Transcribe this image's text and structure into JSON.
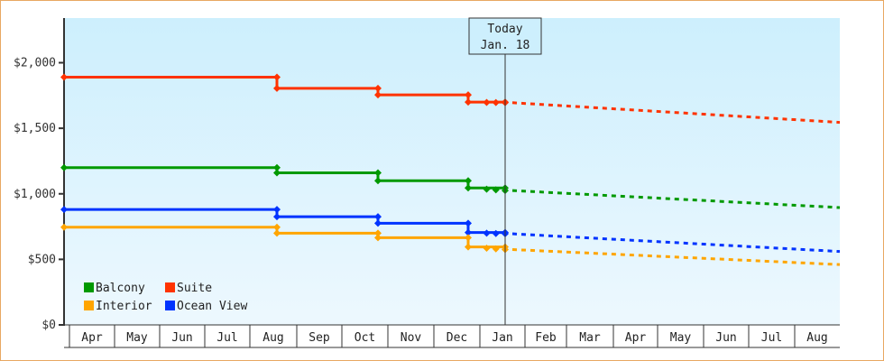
{
  "chart_data": {
    "type": "line",
    "title": "",
    "xlabel": "",
    "ylabel": "",
    "ylim": [
      0,
      2340
    ],
    "y_ticks": [
      {
        "value": 0,
        "label": "$0"
      },
      {
        "value": 500,
        "label": "$500"
      },
      {
        "value": 1000,
        "label": "$1,000"
      },
      {
        "value": 1500,
        "label": "$1,500"
      },
      {
        "value": 2000,
        "label": "$2,000"
      }
    ],
    "x_months": [
      "Apr",
      "May",
      "Jun",
      "Jul",
      "Aug",
      "Sep",
      "Oct",
      "Nov",
      "Dec",
      "Jan",
      "Feb",
      "Mar",
      "Apr",
      "May",
      "Jun",
      "Jul",
      "Aug"
    ],
    "today_marker": {
      "line1": "Today",
      "line2": "Jan. 18"
    },
    "legend": [
      {
        "name": "Balcony",
        "color": "#009900"
      },
      {
        "name": "Suite",
        "color": "#ff3300"
      },
      {
        "name": "Interior",
        "color": "#ffa500"
      },
      {
        "name": "Ocean View",
        "color": "#0033ff"
      }
    ],
    "series": [
      {
        "name": "Suite",
        "color": "#ff3300",
        "history": [
          {
            "date": "Apr",
            "value": 1890
          },
          {
            "date": "Aug",
            "value": 1805
          },
          {
            "date": "Oct",
            "value": 1755
          },
          {
            "date": "Dec",
            "value": 1700
          },
          {
            "date": "Jan 18",
            "value": 1695
          }
        ],
        "forecast": [
          {
            "date": "Jan 18",
            "value": 1695
          },
          {
            "date": "Aug end",
            "value": 1545
          }
        ]
      },
      {
        "name": "Balcony",
        "color": "#009900",
        "history": [
          {
            "date": "Apr",
            "value": 1200
          },
          {
            "date": "Aug",
            "value": 1160
          },
          {
            "date": "Oct",
            "value": 1100
          },
          {
            "date": "Dec",
            "value": 1045
          },
          {
            "date": "Jan 18",
            "value": 1025
          }
        ],
        "forecast": [
          {
            "date": "Jan 18",
            "value": 1025
          },
          {
            "date": "Aug end",
            "value": 895
          }
        ]
      },
      {
        "name": "Ocean View",
        "color": "#0033ff",
        "history": [
          {
            "date": "Apr",
            "value": 880
          },
          {
            "date": "Aug",
            "value": 825
          },
          {
            "date": "Oct",
            "value": 775
          },
          {
            "date": "Dec",
            "value": 705
          },
          {
            "date": "Jan 18",
            "value": 695
          }
        ],
        "forecast": [
          {
            "date": "Jan 18",
            "value": 695
          },
          {
            "date": "Aug end",
            "value": 560
          }
        ]
      },
      {
        "name": "Interior",
        "color": "#ffa500",
        "history": [
          {
            "date": "Apr",
            "value": 745
          },
          {
            "date": "Aug",
            "value": 700
          },
          {
            "date": "Oct",
            "value": 665
          },
          {
            "date": "Dec",
            "value": 595
          },
          {
            "date": "Jan 18",
            "value": 575
          }
        ],
        "forecast": [
          {
            "date": "Jan 18",
            "value": 575
          },
          {
            "date": "Aug end",
            "value": 460
          }
        ]
      }
    ]
  }
}
